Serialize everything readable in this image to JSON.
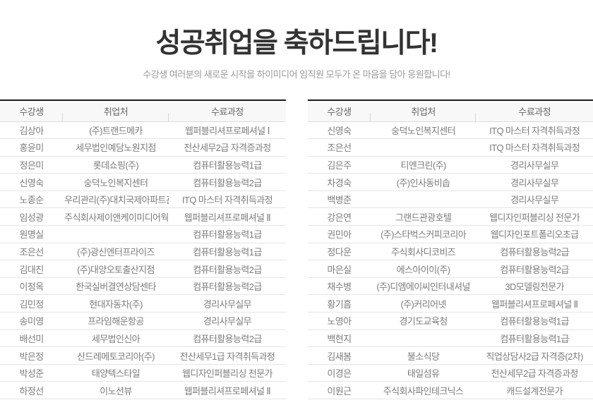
{
  "hero": {
    "title": "성공취업을 축하드립니다!",
    "subtitle": "수강생 여러분의 새로운 시작을 하이미디어 임직원 모두가 온 마음을 담아 응원합니다!"
  },
  "table_columns": [
    "수강생",
    "취업처",
    "수료과정"
  ],
  "tables": {
    "left": {
      "rows": [
        [
          "김상아",
          "(주)트랜드메카",
          "웹퍼블리셔프로페셔널 Ⅰ"
        ],
        [
          "홍윤미",
          "세무법인예담노원지점",
          "전산세무2급 자격증과정"
        ],
        [
          "정은미",
          "롯데쇼핑(주)",
          "컴퓨터활용능력1급"
        ],
        [
          "신영숙",
          "숭덕노인복지센터",
          "컴퓨터활용능력2급"
        ],
        [
          "노종순",
          "우리관리(주)대치국제아파트관리소",
          "ITQ 마스터 자격취득과정"
        ],
        [
          "임성광",
          "주식회사제이앤케이미디어웍스",
          "웹퍼블리셔프로페셔널 Ⅱ"
        ],
        [
          "원명실",
          "",
          "컴퓨터활용능력1급"
        ],
        [
          "조은선",
          "(주)광신엔터프라이즈",
          "컴퓨터활용능력1급"
        ],
        [
          "김대진",
          "(주)대양오토출산지점",
          "컴퓨터활용능력2급"
        ],
        [
          "이정옥",
          "한국실버결연상담센타",
          "컴퓨터활용능력2급"
        ],
        [
          "김민정",
          "현대자동차(주)",
          "경리사무실무"
        ],
        [
          "송미영",
          "프라임해운항공",
          "경리사무실무"
        ],
        [
          "배선미",
          "세무법인신아",
          "컴퓨터활용능력2급"
        ],
        [
          "박은정",
          "산드레메토코리아(주)",
          "전산세무1급 자격취득과정"
        ],
        [
          "박성준",
          "태양텍스타일",
          "웹디자인퍼블리싱 전문가"
        ],
        [
          "하정선",
          "이노션뷰",
          "웹퍼블리셔프로페셔널 Ⅱ"
        ]
      ]
    },
    "right": {
      "rows": [
        [
          "신영숙",
          "숭덕노인복지센터",
          "ITQ 마스터 자격취득과정"
        ],
        [
          "조은선",
          "",
          "ITQ 마스터 자격취득과정"
        ],
        [
          "김은주",
          "티엔크린(주)",
          "경리사무실무"
        ],
        [
          "차경숙",
          "(주)인사동비솝",
          "경리사무실무"
        ],
        [
          "백병준",
          "",
          "경리사무실무"
        ],
        [
          "강은연",
          "그랜드관광호텔",
          "웹디자인퍼블리싱 전문가"
        ],
        [
          "권민아",
          "(주)스타벅스커피코리아",
          "웹디자인포트폴리오초급"
        ],
        [
          "정다운",
          "주식회사디코비즈",
          "컴퓨터활용능력2급"
        ],
        [
          "마은실",
          "에스아이이(주)",
          "컴퓨터활용능력2급"
        ],
        [
          "채수병",
          "(주)디엠에이씨인터내셔널",
          "3D모델링전문가"
        ],
        [
          "황기흠",
          "(주)커리어넷",
          "웹퍼블리셔프로페셔널 Ⅱ"
        ],
        [
          "노영아",
          "경기도교육청",
          "컴퓨터활용능력1급"
        ],
        [
          "백현지",
          "",
          "컴퓨터활용능력1급"
        ],
        [
          "김새봄",
          "불소식당",
          "직업상담사2급 자격증(2차)"
        ],
        [
          "이경은",
          "태일섬유",
          "전산세무2급 자격증과정"
        ],
        [
          "이원근",
          "주식회사파인테크닉스",
          "캐드설계전문가"
        ]
      ]
    }
  },
  "colors": {
    "title_text": "#333333",
    "subtitle_text": "#999999",
    "header_bg": "#f8f8f8",
    "header_top_border": "#1c1c1c",
    "header_text": "#666666",
    "row_border": "#e5e5e5",
    "cell_text": "#7d7d7d"
  }
}
